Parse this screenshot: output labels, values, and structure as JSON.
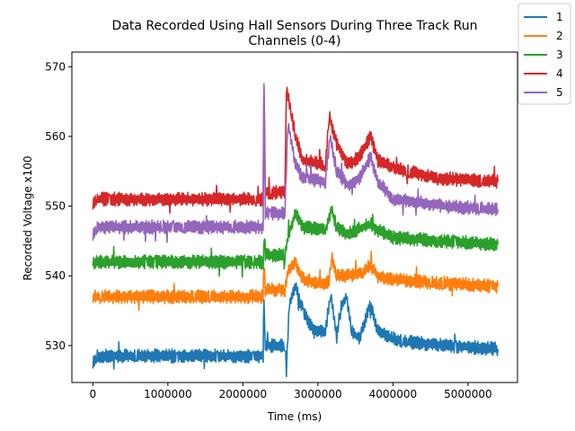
{
  "chart_data": {
    "type": "line",
    "title_line1": "Data Recorded Using Hall Sensors During Three Track Run",
    "title_line2": "Channels (0-4)",
    "xlabel": "Time (ms)",
    "ylabel": "Recorded Voltage x100",
    "xlim": [
      -280000,
      5660000
    ],
    "ylim": [
      524.7,
      572.1
    ],
    "xticks": [
      0,
      1000000,
      2000000,
      3000000,
      4000000,
      5000000
    ],
    "xtick_labels": [
      "0",
      "1000000",
      "2000000",
      "3000000",
      "4000000",
      "5000000"
    ],
    "yticks": [
      530,
      540,
      550,
      560,
      570
    ],
    "ytick_labels": [
      "530",
      "540",
      "550",
      "560",
      "570"
    ],
    "grid": false,
    "legend_position": "top-right",
    "series": [
      {
        "name": "1",
        "color": "#1f77b4",
        "points": [
          [
            0,
            527.5
          ],
          [
            50000,
            528.5
          ],
          [
            2270000,
            528.5
          ],
          [
            2280000,
            537
          ],
          [
            2300000,
            530
          ],
          [
            2560000,
            530
          ],
          [
            2580000,
            526.5
          ],
          [
            2620000,
            536
          ],
          [
            2700000,
            538.5
          ],
          [
            2800000,
            535
          ],
          [
            2950000,
            532
          ],
          [
            3100000,
            532
          ],
          [
            3170000,
            537.5
          ],
          [
            3250000,
            531
          ],
          [
            3300000,
            535.5
          ],
          [
            3380000,
            537
          ],
          [
            3450000,
            532
          ],
          [
            3550000,
            531
          ],
          [
            3700000,
            536
          ],
          [
            3800000,
            532
          ],
          [
            4000000,
            531
          ],
          [
            4200000,
            530.5
          ],
          [
            4700000,
            530
          ],
          [
            5400000,
            529.5
          ]
        ]
      },
      {
        "name": "2",
        "color": "#ff7f0e",
        "points": [
          [
            0,
            537
          ],
          [
            2270000,
            537
          ],
          [
            2280000,
            542
          ],
          [
            2300000,
            538
          ],
          [
            2560000,
            538
          ],
          [
            2600000,
            540.5
          ],
          [
            2700000,
            542
          ],
          [
            2800000,
            539.5
          ],
          [
            3000000,
            539
          ],
          [
            3150000,
            539
          ],
          [
            3180000,
            543
          ],
          [
            3250000,
            540
          ],
          [
            3400000,
            540
          ],
          [
            3600000,
            540.5
          ],
          [
            3700000,
            541.5
          ],
          [
            3800000,
            540
          ],
          [
            4000000,
            539.5
          ],
          [
            4600000,
            539
          ],
          [
            5400000,
            538.5
          ]
        ]
      },
      {
        "name": "3",
        "color": "#2ca02c",
        "points": [
          [
            0,
            542
          ],
          [
            2270000,
            542
          ],
          [
            2290000,
            546
          ],
          [
            2300000,
            543
          ],
          [
            2560000,
            543
          ],
          [
            2600000,
            545.5
          ],
          [
            2700000,
            549
          ],
          [
            2800000,
            547
          ],
          [
            3100000,
            546.5
          ],
          [
            3180000,
            549.5
          ],
          [
            3250000,
            547
          ],
          [
            3400000,
            546
          ],
          [
            3700000,
            547.5
          ],
          [
            3800000,
            546.5
          ],
          [
            4000000,
            545.5
          ],
          [
            4600000,
            545
          ],
          [
            5400000,
            544.5
          ]
        ]
      },
      {
        "name": "4",
        "color": "#d62728",
        "points": [
          [
            0,
            550
          ],
          [
            50000,
            551
          ],
          [
            2270000,
            551
          ],
          [
            2280000,
            568
          ],
          [
            2300000,
            552
          ],
          [
            2560000,
            552
          ],
          [
            2580000,
            567
          ],
          [
            2650000,
            563
          ],
          [
            2700000,
            560
          ],
          [
            2800000,
            556.5
          ],
          [
            3100000,
            556
          ],
          [
            3150000,
            563
          ],
          [
            3250000,
            559
          ],
          [
            3400000,
            556
          ],
          [
            3550000,
            557
          ],
          [
            3700000,
            560
          ],
          [
            3800000,
            556.5
          ],
          [
            4000000,
            555.5
          ],
          [
            4600000,
            554
          ],
          [
            5400000,
            553.5
          ]
        ]
      },
      {
        "name": "5",
        "color": "#9467bd",
        "points": [
          [
            0,
            546
          ],
          [
            50000,
            547
          ],
          [
            2270000,
            547
          ],
          [
            2280000,
            568
          ],
          [
            2300000,
            549
          ],
          [
            2560000,
            549
          ],
          [
            2600000,
            562
          ],
          [
            2700000,
            556
          ],
          [
            2800000,
            554
          ],
          [
            3100000,
            553.5
          ],
          [
            3160000,
            560
          ],
          [
            3250000,
            555
          ],
          [
            3400000,
            553
          ],
          [
            3550000,
            554
          ],
          [
            3700000,
            557
          ],
          [
            3800000,
            553.5
          ],
          [
            4000000,
            551
          ],
          [
            4700000,
            550
          ],
          [
            5400000,
            549.5
          ]
        ]
      }
    ]
  }
}
